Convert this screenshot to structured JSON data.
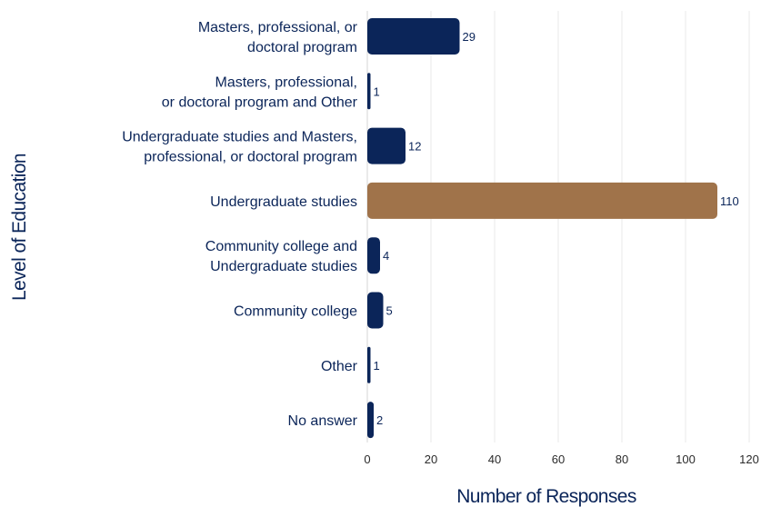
{
  "chart_data": {
    "type": "bar",
    "orientation": "horizontal",
    "title": "",
    "xlabel": "Number of Responses",
    "ylabel": "Level of Education",
    "xlim": [
      0,
      120
    ],
    "x_ticks": [
      0,
      20,
      40,
      60,
      80,
      100,
      120
    ],
    "grid": true,
    "legend": "none",
    "categories": [
      [
        "Masters, professional, or",
        "doctoral program"
      ],
      [
        "Masters, professional,",
        "or doctoral program and Other"
      ],
      [
        "Undergraduate studies and Masters,",
        "professional, or doctoral program"
      ],
      [
        "Undergraduate studies"
      ],
      [
        "Community college and",
        "Undergraduate studies"
      ],
      [
        "Community college"
      ],
      [
        "Other"
      ],
      [
        "No answer"
      ]
    ],
    "values": [
      29,
      1,
      12,
      110,
      4,
      5,
      1,
      2
    ],
    "highlight_index": 3,
    "colors": {
      "bar": "#0b2559",
      "highlight": "#a0734a",
      "label": "#0b2559",
      "tick": "#2b2b2b",
      "grid": "#e8e8e8"
    }
  }
}
